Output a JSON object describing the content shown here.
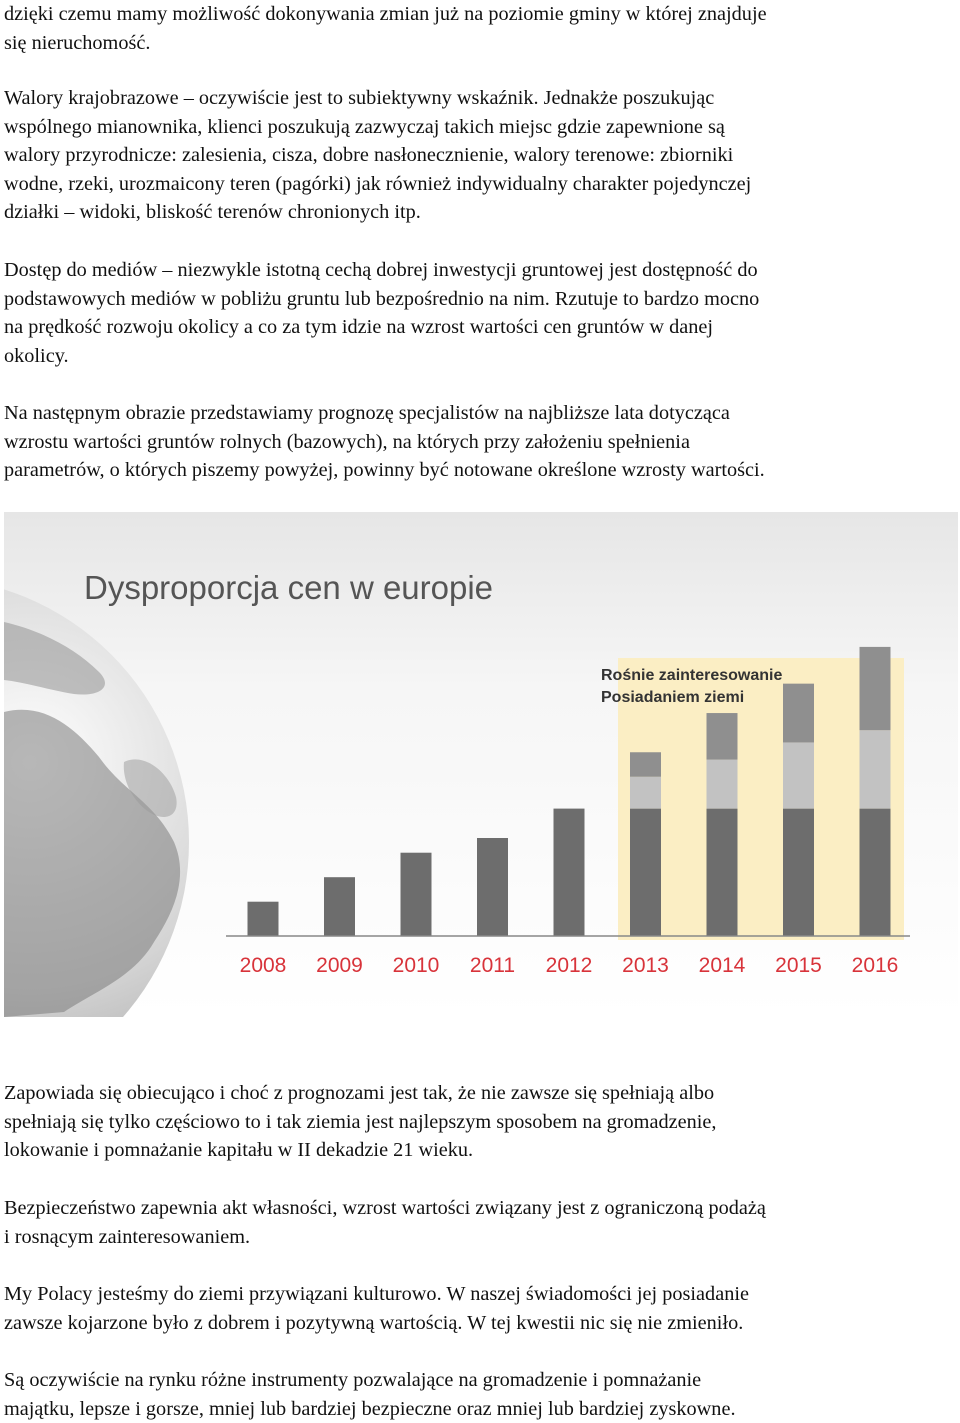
{
  "paragraphs": [
    {
      "top": 0,
      "lines": [
        "dzięki czemu mamy możliwość dokonywania zmian już na poziomie gminy w której znajduje",
        "się nieruchomość."
      ]
    },
    {
      "top": 84,
      "lines": [
        "Walory krajobrazowe – oczywiście jest to subiektywny wskaźnik. Jednakże poszukując",
        "wspólnego mianownika, klienci poszukują zazwyczaj takich miejsc gdzie zapewnione są",
        "walory przyrodnicze: zalesienia, cisza, dobre nasłonecznienie, walory terenowe: zbiorniki",
        "wodne, rzeki, urozmaicony teren (pagórki) jak również indywidualny charakter pojedynczej",
        "działki – widoki, bliskość terenów chronionych itp."
      ]
    },
    {
      "top": 256,
      "lines": [
        "Dostęp do mediów – niezwykle istotną cechą dobrej inwestycji gruntowej jest dostępność do",
        "podstawowych mediów w pobliżu gruntu lub bezpośrednio na nim. Rzutuje to bardzo mocno",
        "na prędkość rozwoju okolicy a co za tym idzie na wzrost wartości cen gruntów w danej",
        "okolicy."
      ]
    },
    {
      "top": 399,
      "lines": [
        "Na następnym obrazie przedstawiamy prognozę specjalistów na najbliższe lata dotycząca",
        "wzrostu wartości gruntów rolnych (bazowych), na których przy założeniu spełnienia",
        "parametrów, o których piszemy powyżej, powinny być notowane określone wzrosty wartości."
      ]
    },
    {
      "top": 1079,
      "lines": [
        "Zapowiada się obiecująco i choć z prognozami jest tak, że nie zawsze się spełniają albo",
        "spełniają się tylko częściowo to i tak ziemia jest najlepszym sposobem na gromadzenie,",
        "lokowanie i pomnażanie kapitału w II dekadzie 21 wieku."
      ]
    },
    {
      "top": 1194,
      "lines": [
        "Bezpieczeństwo zapewnia akt własności, wzrost wartości związany jest z ograniczoną podażą",
        "i rosnącym zainteresowaniem."
      ]
    },
    {
      "top": 1280,
      "lines": [
        "My Polacy jesteśmy do ziemi przywiązani kulturowo. W naszej świadomości jej posiadanie",
        "zawsze kojarzone było z dobrem i pozytywną wartością. W tej kwestii nic się nie zmieniło."
      ]
    },
    {
      "top": 1366,
      "lines": [
        "Są oczywiście na rynku różne instrumenty pozwalające na gromadzenie i pomnażanie",
        "majątku, lepsze i gorsze, mniej lub bardziej bezpieczne oraz mniej lub bardziej zyskowne."
      ]
    }
  ],
  "chart_data": {
    "type": "bar",
    "title": "Dysproporcja cen w europie",
    "annotation": [
      "Rośnie zainteresowanie",
      "Posiadaniem ziemi"
    ],
    "categories": [
      "2008",
      "2009",
      "2010",
      "2011",
      "2012",
      "2013",
      "2014",
      "2015",
      "2016"
    ],
    "series": [
      {
        "values": [
          1.4,
          2.4,
          3.4,
          4.0,
          5.2,
          5.2,
          5.2,
          5.2,
          5.2
        ]
      },
      {
        "values": [
          0,
          0,
          0,
          0,
          0,
          1.3,
          2.0,
          2.7,
          3.2
        ]
      },
      {
        "values": [
          0,
          0,
          0,
          0,
          0,
          1.0,
          1.9,
          2.4,
          3.4
        ]
      }
    ],
    "ylim": [
      0,
      12
    ],
    "colors": {
      "base": "#6d6d6d",
      "mid": "#c2c2c2",
      "top": "#8f8f8f",
      "highlight": "#fbeec4",
      "year_labels": "#d8333a",
      "title": "#555555",
      "annotation_text": "#333333"
    }
  }
}
